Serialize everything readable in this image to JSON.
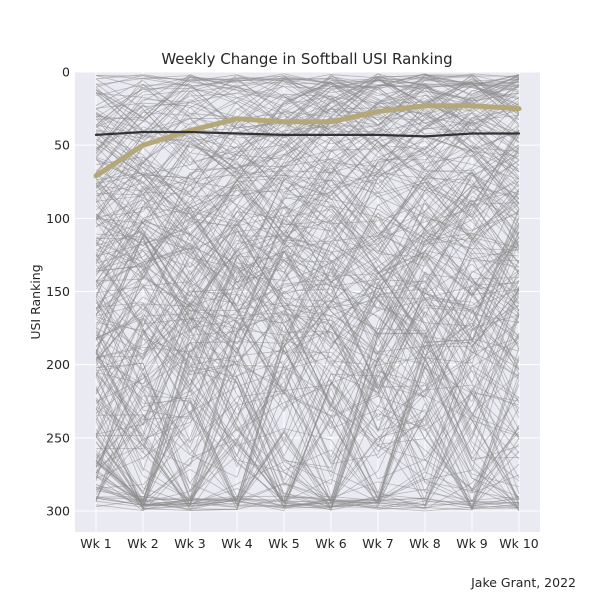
{
  "chart_data": {
    "type": "line",
    "title": "Weekly Change in Softball USI Ranking",
    "xlabel": "",
    "ylabel": "USI Ranking",
    "categories": [
      "Wk 1",
      "Wk 2",
      "Wk 3",
      "Wk 4",
      "Wk 5",
      "Wk 6",
      "Wk 7",
      "Wk 8",
      "Wk 9",
      "Wk 10"
    ],
    "yticks": [
      0,
      50,
      100,
      150,
      200,
      250,
      300
    ],
    "ylim": [
      0,
      300
    ],
    "y_inverted": true,
    "grid": true,
    "background_team_count": 300,
    "background_color": "#8c8c8c",
    "series": [
      {
        "values": [
          71,
          50,
          40,
          32,
          34,
          34,
          27,
          23,
          23,
          25
        ],
        "color": "#b5a878"
      },
      {
        "values": [
          43,
          41,
          41,
          42,
          43,
          43,
          43,
          44,
          42,
          42
        ],
        "color": "#333333"
      }
    ]
  },
  "credit": "Jake Grant, 2022"
}
